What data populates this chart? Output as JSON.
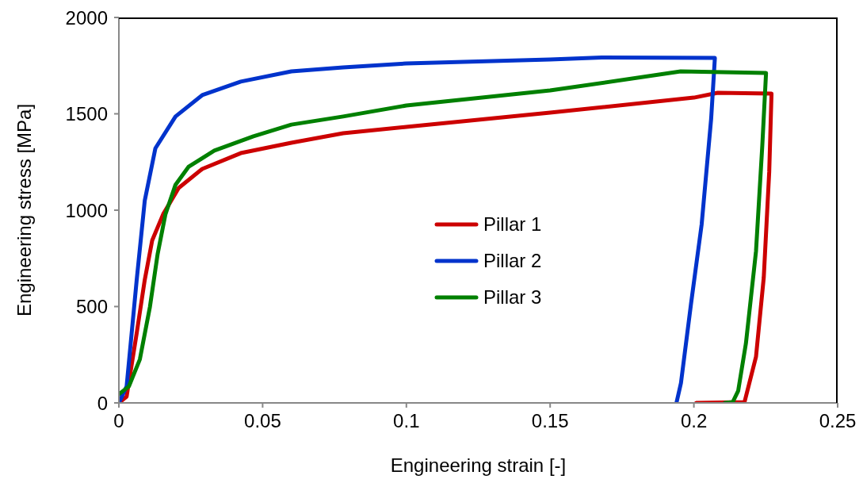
{
  "chart_data": {
    "type": "line",
    "xlabel": "Engineering strain [-]",
    "ylabel": "Engineering stress [MPa]",
    "xlim": [
      0,
      0.25
    ],
    "xticks": [
      0,
      0.05,
      0.1,
      0.15,
      0.2,
      0.25
    ],
    "ylim": [
      0,
      2000
    ],
    "yticks": [
      0,
      500,
      1000,
      1500,
      2000
    ],
    "grid": false,
    "legend": "center",
    "marker": "none",
    "line_style": "solid",
    "series": [
      {
        "name": "Pillar 1",
        "color": "#cc0000",
        "x": [
          0,
          0.0027,
          0.0062,
          0.009,
          0.0116,
          0.0154,
          0.0208,
          0.029,
          0.0424,
          0.06,
          0.078,
          0.1,
          0.15,
          0.2,
          0.2083,
          0.227,
          0.2262,
          0.2243,
          0.2216,
          0.2176,
          0.2008
        ],
        "values": [
          0,
          33,
          362,
          638,
          844,
          979,
          1115,
          1214,
          1296,
          1350,
          1399,
          1432,
          1506,
          1584,
          1609,
          1605,
          1198,
          650,
          239,
          4,
          0
        ]
      },
      {
        "name": "Pillar 2",
        "color": "#0033cc",
        "x": [
          0,
          0.0027,
          0.0062,
          0.009,
          0.0127,
          0.0197,
          0.029,
          0.0424,
          0.06,
          0.078,
          0.1,
          0.15,
          0.168,
          0.2073,
          0.206,
          0.2027,
          0.199,
          0.1955,
          0.194
        ],
        "values": [
          0,
          86,
          638,
          1049,
          1321,
          1486,
          1597,
          1667,
          1720,
          1741,
          1761,
          1782,
          1792,
          1790,
          1473,
          926,
          514,
          103,
          4
        ]
      },
      {
        "name": "Pillar 3",
        "color": "#008000",
        "x": [
          0,
          0.0035,
          0.0073,
          0.0108,
          0.0135,
          0.0162,
          0.0197,
          0.0243,
          0.0332,
          0.0468,
          0.06,
          0.078,
          0.1,
          0.15,
          0.1954,
          0.2251,
          0.2238,
          0.2216,
          0.2181,
          0.2154,
          0.2135,
          0.2108
        ],
        "values": [
          45,
          86,
          226,
          498,
          774,
          979,
          1132,
          1226,
          1309,
          1383,
          1444,
          1486,
          1543,
          1621,
          1720,
          1712,
          1337,
          786,
          309,
          62,
          4,
          0
        ]
      }
    ]
  }
}
